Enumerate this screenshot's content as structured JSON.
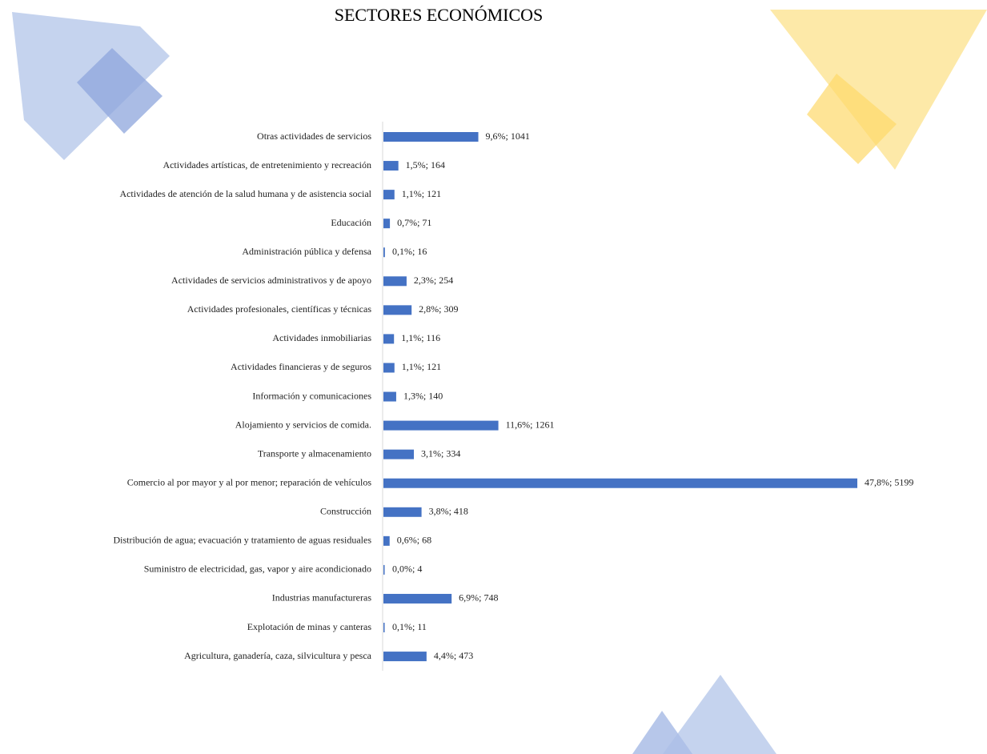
{
  "chart_data": {
    "type": "bar",
    "orientation": "horizontal",
    "title": "SECTORES ECONÓMICOS",
    "categories": [
      "Otras actividades de servicios",
      "Actividades artísticas, de entretenimiento y recreación",
      "Actividades de atención de la salud humana y de asistencia social",
      "Educación",
      "Administración pública y defensa",
      "Actividades de servicios administrativos y de apoyo",
      "Actividades profesionales, científicas y técnicas",
      "Actividades inmobiliarias",
      "Actividades financieras y de seguros",
      "Información y comunicaciones",
      "Alojamiento y servicios de comida.",
      "Transporte y almacenamiento",
      "Comercio al por mayor y al por menor; reparación de vehículos",
      "Construcción",
      "Distribución de agua; evacuación y tratamiento de aguas residuales",
      "Suministro de electricidad, gas, vapor y aire acondicionado",
      "Industrias manufactureras",
      "Explotación de minas y canteras",
      "Agricultura, ganadería, caza, silvicultura y pesca"
    ],
    "values": [
      1041,
      164,
      121,
      71,
      16,
      254,
      309,
      116,
      121,
      140,
      1261,
      334,
      5199,
      418,
      68,
      4,
      748,
      11,
      473
    ],
    "value_labels": [
      "9,6%; 1041",
      "1,5%; 164",
      "1,1%; 121",
      "0,7%; 71",
      "0,1%; 16",
      "2,3%; 254",
      "2,8%; 309",
      "1,1%; 116",
      "1,1%; 121",
      "1,3%; 140",
      "11,6%; 1261",
      "3,1%; 334",
      "47,8%; 5199",
      "3,8%; 418",
      "0,6%; 68",
      "0,0%; 4",
      "6,9%; 748",
      "0,1%; 11",
      "4,4%; 473"
    ],
    "color": "#4472c4"
  }
}
